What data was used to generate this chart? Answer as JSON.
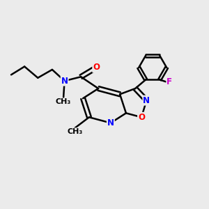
{
  "bg_color": "#ebebeb",
  "line_color": "#000000",
  "bond_width": 1.8,
  "atom_colors": {
    "N": "#0000ff",
    "O": "#ff0000",
    "F": "#cc00cc",
    "C": "#000000"
  },
  "font_size": 8.5
}
